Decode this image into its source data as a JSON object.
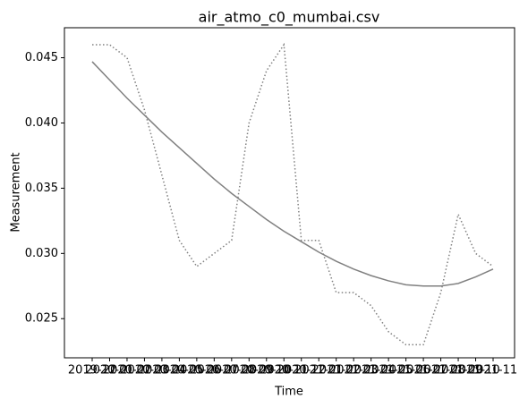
{
  "chart_data": {
    "type": "line",
    "title": "air_atmo_c0_mumbai.csv",
    "x_label": "Time",
    "y_label": "Measurement",
    "categories": [
      "2019-12",
      "2020-01",
      "2020-02",
      "2020-03",
      "2020-04",
      "2020-05",
      "2020-06",
      "2020-07",
      "2020-08",
      "2020-09",
      "2020-10",
      "2020-11",
      "2020-12",
      "2021-01",
      "2021-02",
      "2021-03",
      "2021-04",
      "2021-05",
      "2021-06",
      "2021-07",
      "2021-08",
      "2021-09",
      "2021-10",
      "2021-11"
    ],
    "series": [
      {
        "color": "#808080",
        "dash": "dotted",
        "values": [
          0.046,
          0.046,
          0.045,
          0.041,
          0.036,
          0.031,
          0.029,
          0.03,
          0.031,
          0.04,
          0.044,
          0.046,
          0.031,
          0.031,
          0.027,
          0.027,
          0.026,
          0.024,
          0.023,
          0.023,
          0.027,
          0.033,
          0.03,
          0.029
        ]
      },
      {
        "color": "#808080",
        "dash": "solid",
        "values": [
          0.0447,
          0.0433,
          0.0419,
          0.0406,
          0.0393,
          0.0381,
          0.0369,
          0.0357,
          0.0346,
          0.0336,
          0.0326,
          0.0317,
          0.0309,
          0.0301,
          0.0294,
          0.0288,
          0.0283,
          0.0279,
          0.0276,
          0.0275,
          0.0275,
          0.0277,
          0.0282,
          0.0288
        ]
      }
    ],
    "ylim": [
      0.022,
      0.0473
    ],
    "yticks": [
      0.025,
      {
        "value": 0.03,
        "label": "0.030"
      },
      0.035,
      {
        "value": 0.04,
        "label": "0.040"
      },
      0.045
    ],
    "grid": false
  }
}
